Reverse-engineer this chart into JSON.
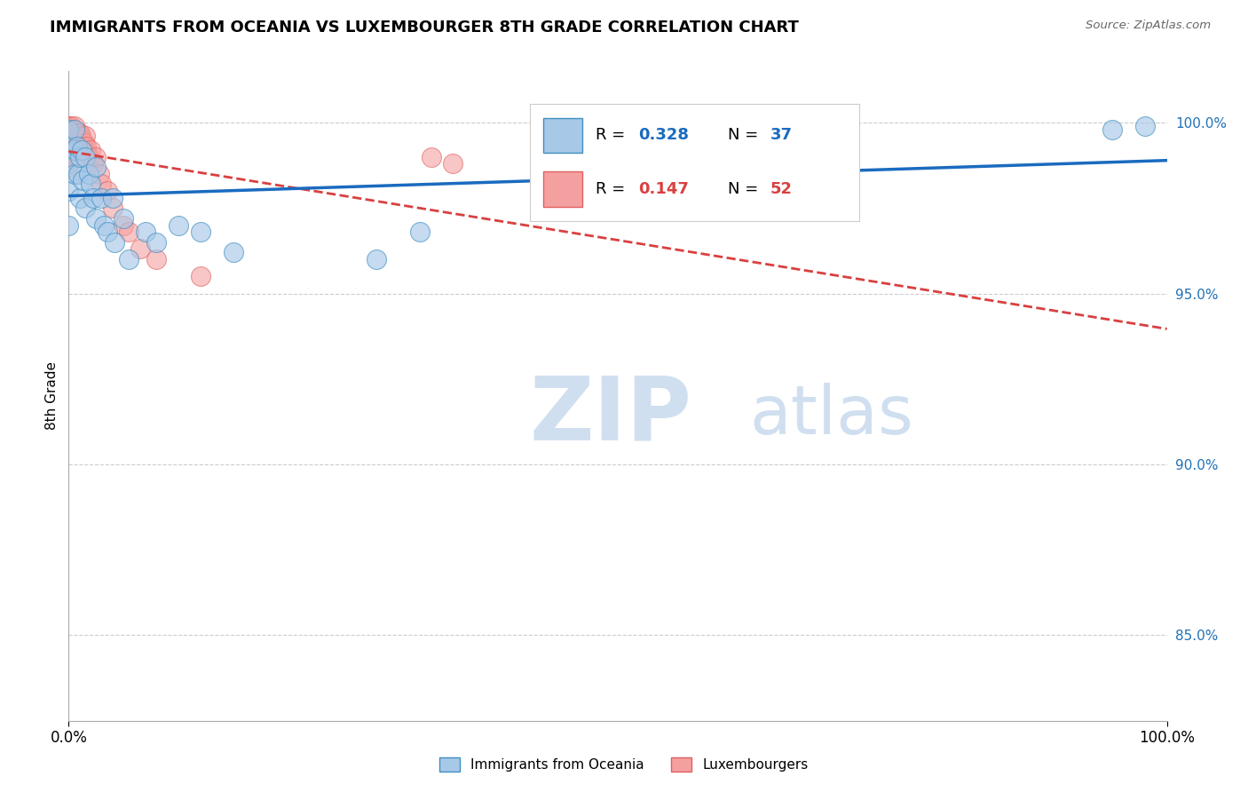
{
  "title": "IMMIGRANTS FROM OCEANIA VS LUXEMBOURGER 8TH GRADE CORRELATION CHART",
  "source": "Source: ZipAtlas.com",
  "ylabel": "8th Grade",
  "right_ytick_labels": [
    "85.0%",
    "90.0%",
    "95.0%",
    "100.0%"
  ],
  "right_ytick_values": [
    0.85,
    0.9,
    0.95,
    1.0
  ],
  "xlim": [
    0.0,
    1.0
  ],
  "ylim": [
    0.825,
    1.015
  ],
  "blue_R": 0.328,
  "blue_N": 37,
  "pink_R": 0.147,
  "pink_N": 52,
  "blue_color": "#a8c8e8",
  "pink_color": "#f4a0a0",
  "trendline_blue_color": "#1a6bbf",
  "trendline_pink_color": "#d94040",
  "watermark_color": "#d0dff0",
  "background_color": "#ffffff",
  "grid_color": "#cccccc",
  "blue_scatter_x": [
    0.0,
    0.0,
    0.0,
    0.0,
    0.0,
    0.005,
    0.005,
    0.005,
    0.008,
    0.009,
    0.01,
    0.01,
    0.012,
    0.013,
    0.015,
    0.015,
    0.018,
    0.02,
    0.022,
    0.025,
    0.025,
    0.03,
    0.032,
    0.035,
    0.04,
    0.042,
    0.05,
    0.055,
    0.07,
    0.08,
    0.1,
    0.12,
    0.15,
    0.28,
    0.32,
    0.95,
    0.98
  ],
  "blue_scatter_y": [
    0.998,
    0.993,
    0.988,
    0.98,
    0.97,
    0.998,
    0.992,
    0.985,
    0.993,
    0.985,
    0.99,
    0.978,
    0.992,
    0.983,
    0.99,
    0.975,
    0.985,
    0.982,
    0.978,
    0.987,
    0.972,
    0.978,
    0.97,
    0.968,
    0.978,
    0.965,
    0.972,
    0.96,
    0.968,
    0.965,
    0.97,
    0.968,
    0.962,
    0.96,
    0.968,
    0.998,
    0.999
  ],
  "pink_scatter_x": [
    0.0,
    0.0,
    0.0,
    0.0,
    0.0,
    0.0,
    0.0,
    0.0,
    0.0,
    0.0,
    0.0,
    0.0,
    0.0,
    0.0,
    0.0,
    0.0,
    0.0,
    0.0,
    0.002,
    0.002,
    0.003,
    0.004,
    0.005,
    0.005,
    0.006,
    0.007,
    0.008,
    0.009,
    0.01,
    0.01,
    0.011,
    0.012,
    0.013,
    0.014,
    0.015,
    0.016,
    0.017,
    0.018,
    0.02,
    0.022,
    0.025,
    0.028,
    0.03,
    0.035,
    0.04,
    0.05,
    0.055,
    0.065,
    0.08,
    0.12,
    0.33,
    0.35
  ],
  "pink_scatter_y": [
    0.999,
    0.999,
    0.998,
    0.998,
    0.997,
    0.997,
    0.996,
    0.996,
    0.995,
    0.995,
    0.994,
    0.993,
    0.992,
    0.991,
    0.99,
    0.989,
    0.988,
    0.987,
    0.999,
    0.995,
    0.998,
    0.997,
    0.999,
    0.995,
    0.997,
    0.996,
    0.997,
    0.995,
    0.997,
    0.994,
    0.996,
    0.995,
    0.993,
    0.994,
    0.996,
    0.993,
    0.991,
    0.99,
    0.992,
    0.988,
    0.99,
    0.985,
    0.982,
    0.98,
    0.975,
    0.97,
    0.968,
    0.963,
    0.96,
    0.955,
    0.99,
    0.988
  ]
}
